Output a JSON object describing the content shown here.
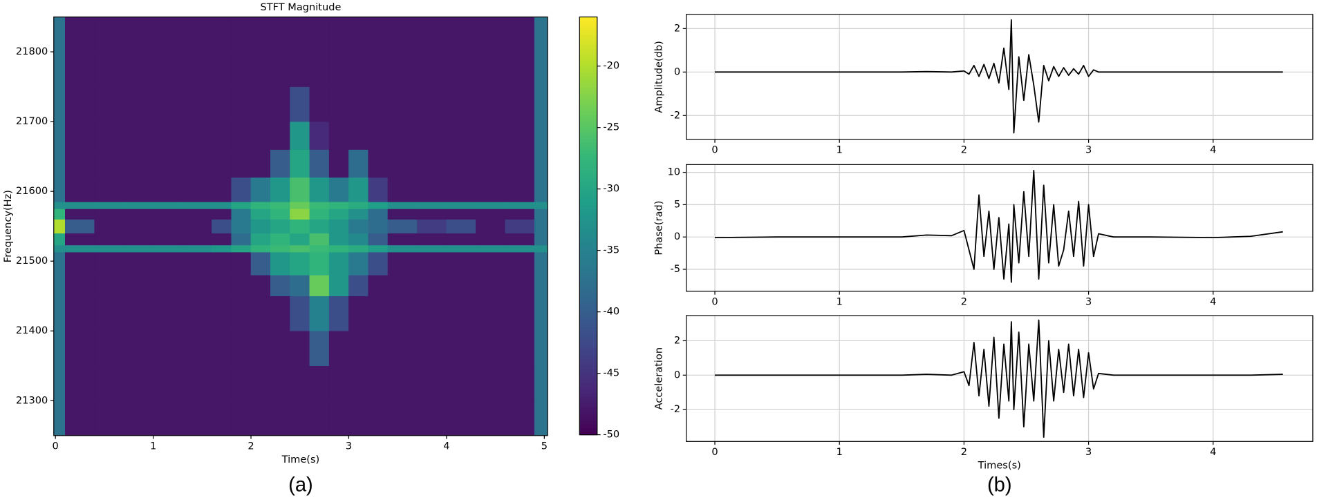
{
  "panels": {
    "a": "(a)",
    "b": "(b)"
  },
  "chart_data": [
    {
      "type": "heatmap",
      "title": "STFT Magnitude",
      "xlabel": "Time(s)",
      "ylabel": "Frequency(Hz)",
      "cmap": "viridis",
      "xbins": [
        -0.05,
        0.1,
        0.4,
        0.7,
        1.0,
        1.3,
        1.6,
        1.8,
        2.0,
        2.2,
        2.4,
        2.6,
        2.8,
        3.0,
        3.2,
        3.4,
        3.7,
        4.0,
        4.3,
        4.6,
        4.9,
        5.05
      ],
      "ybins": [
        21250,
        21300,
        21350,
        21400,
        21450,
        21480,
        21513,
        21523,
        21540,
        21560,
        21575,
        21585,
        21620,
        21660,
        21700,
        21750,
        21800,
        21850
      ],
      "z": [
        [
          -37,
          -48,
          -48,
          -48,
          -48,
          -48,
          -48,
          -48,
          -48,
          -48,
          -48,
          -48,
          -48,
          -48,
          -48,
          -48,
          -48,
          -48,
          -48,
          -48,
          -37
        ],
        [
          -37,
          -48,
          -48,
          -48,
          -48,
          -48,
          -48,
          -48,
          -48,
          -48,
          -48,
          -48,
          -48,
          -48,
          -48,
          -48,
          -48,
          -48,
          -48,
          -48,
          -37
        ],
        [
          -37,
          -48,
          -48,
          -48,
          -48,
          -48,
          -48,
          -48,
          -48,
          -48,
          -48,
          -40,
          -48,
          -48,
          -48,
          -48,
          -48,
          -48,
          -48,
          -48,
          -37
        ],
        [
          -37,
          -48,
          -48,
          -48,
          -48,
          -48,
          -48,
          -48,
          -48,
          -48,
          -42,
          -35,
          -42,
          -48,
          -48,
          -48,
          -48,
          -48,
          -48,
          -48,
          -37
        ],
        [
          -37,
          -48,
          -48,
          -48,
          -48,
          -48,
          -48,
          -48,
          -48,
          -40,
          -38,
          -24,
          -32,
          -42,
          -48,
          -48,
          -48,
          -48,
          -48,
          -48,
          -37
        ],
        [
          -37,
          -48,
          -48,
          -48,
          -48,
          -48,
          -48,
          -48,
          -40,
          -32,
          -30,
          -28,
          -32,
          -36,
          -42,
          -48,
          -48,
          -48,
          -48,
          -48,
          -37
        ],
        [
          -33,
          -33,
          -33,
          -33,
          -33,
          -33,
          -32,
          -30,
          -28,
          -27,
          -26,
          -27,
          -28,
          -29,
          -31,
          -33,
          -33,
          -33,
          -33,
          -33,
          -33
        ],
        [
          -30,
          -48,
          -48,
          -48,
          -48,
          -48,
          -48,
          -38,
          -30,
          -28,
          -30,
          -26,
          -32,
          -34,
          -40,
          -48,
          -48,
          -48,
          -48,
          -48,
          -37
        ],
        [
          -20,
          -40,
          -48,
          -48,
          -48,
          -48,
          -42,
          -36,
          -32,
          -30,
          -28,
          -30,
          -32,
          -36,
          -38,
          -40,
          -44,
          -42,
          -48,
          -44,
          -37
        ],
        [
          -28,
          -48,
          -48,
          -48,
          -48,
          -48,
          -48,
          -36,
          -30,
          -28,
          -22,
          -28,
          -30,
          -33,
          -38,
          -48,
          -48,
          -48,
          -48,
          -48,
          -37
        ],
        [
          -33,
          -33,
          -33,
          -33,
          -33,
          -33,
          -33,
          -30,
          -28,
          -27,
          -24,
          -27,
          -28,
          -29,
          -31,
          -33,
          -33,
          -33,
          -33,
          -33,
          -33
        ],
        [
          -37,
          -48,
          -48,
          -48,
          -48,
          -48,
          -48,
          -42,
          -36,
          -32,
          -26,
          -32,
          -36,
          -32,
          -44,
          -48,
          -48,
          -48,
          -48,
          -48,
          -37
        ],
        [
          -37,
          -48,
          -48,
          -48,
          -48,
          -48,
          -48,
          -48,
          -48,
          -40,
          -30,
          -40,
          -48,
          -38,
          -48,
          -48,
          -48,
          -48,
          -48,
          -48,
          -37
        ],
        [
          -37,
          -48,
          -48,
          -48,
          -48,
          -48,
          -48,
          -48,
          -48,
          -48,
          -32,
          -46,
          -48,
          -48,
          -48,
          -48,
          -48,
          -48,
          -48,
          -48,
          -37
        ],
        [
          -37,
          -48,
          -48,
          -48,
          -48,
          -48,
          -48,
          -48,
          -48,
          -48,
          -42,
          -48,
          -48,
          -48,
          -48,
          -48,
          -48,
          -48,
          -48,
          -48,
          -37
        ],
        [
          -37,
          -48,
          -48,
          -48,
          -48,
          -48,
          -48,
          -48,
          -48,
          -48,
          -48,
          -48,
          -48,
          -48,
          -48,
          -48,
          -48,
          -48,
          -48,
          -48,
          -37
        ],
        [
          -37,
          -48,
          -48,
          -48,
          -48,
          -48,
          -48,
          -48,
          -48,
          -48,
          -48,
          -48,
          -48,
          -48,
          -48,
          -48,
          -48,
          -48,
          -48,
          -48,
          -37
        ]
      ],
      "xlim": [
        -0.017,
        5.034
      ],
      "ylim": [
        21250,
        21850
      ],
      "xticks": [
        0,
        1,
        2,
        3,
        4,
        5
      ],
      "yticks": [
        21300,
        21400,
        21500,
        21600,
        21700,
        21800
      ],
      "clim": [
        -50,
        -16
      ],
      "cticks": [
        -50,
        -45,
        -40,
        -35,
        -30,
        -25,
        -20
      ]
    },
    {
      "type": "line",
      "ylabel": "Amplitude(db)",
      "x": [
        0,
        0.5,
        1,
        1.5,
        1.7,
        1.9,
        2.0,
        2.04,
        2.08,
        2.12,
        2.16,
        2.2,
        2.24,
        2.28,
        2.32,
        2.36,
        2.38,
        2.4,
        2.44,
        2.48,
        2.52,
        2.56,
        2.6,
        2.64,
        2.68,
        2.72,
        2.76,
        2.8,
        2.84,
        2.88,
        2.92,
        2.96,
        3.0,
        3.04,
        3.08,
        3.2,
        3.5,
        4,
        4.3,
        4.56
      ],
      "series": [
        {
          "color": "#000000",
          "values": [
            0,
            0,
            0,
            0,
            0.02,
            0,
            0.05,
            -0.1,
            0.3,
            -0.2,
            0.35,
            -0.3,
            0.4,
            -0.5,
            1.1,
            -0.8,
            2.4,
            -2.8,
            0.7,
            -1.3,
            0.8,
            -0.6,
            -2.3,
            0.3,
            -0.4,
            0.25,
            -0.2,
            0.2,
            -0.15,
            0.15,
            -0.1,
            0.3,
            -0.2,
            0.1,
            0,
            0,
            0,
            0,
            0,
            0
          ]
        }
      ],
      "xlim": [
        -0.23,
        4.8
      ],
      "ylim": [
        -3.1,
        2.65
      ],
      "xticks": [
        0,
        1,
        2,
        3,
        4
      ],
      "yticks": [
        -2,
        0,
        2
      ],
      "grid": true
    },
    {
      "type": "line",
      "ylabel": "Phase(rad)",
      "x": [
        0,
        0.5,
        1,
        1.5,
        1.7,
        1.9,
        2.0,
        2.04,
        2.08,
        2.12,
        2.16,
        2.2,
        2.24,
        2.28,
        2.32,
        2.36,
        2.38,
        2.4,
        2.44,
        2.48,
        2.52,
        2.56,
        2.6,
        2.64,
        2.68,
        2.72,
        2.76,
        2.8,
        2.84,
        2.88,
        2.92,
        2.96,
        3.0,
        3.04,
        3.08,
        3.2,
        3.5,
        4,
        4.3,
        4.56
      ],
      "series": [
        {
          "color": "#000000",
          "values": [
            -0.1,
            0,
            0,
            0,
            0.3,
            0.2,
            1.0,
            -2,
            -5,
            6.5,
            -3,
            4,
            -5,
            3,
            -6.5,
            2,
            -7,
            5,
            -4,
            7,
            -3,
            10.3,
            -6.5,
            8,
            -4,
            5,
            -4.5,
            -2,
            4,
            -3,
            5.5,
            -4.5,
            5,
            -3,
            0.5,
            0,
            0,
            -0.1,
            0.1,
            0.8
          ]
        }
      ],
      "xlim": [
        -0.23,
        4.8
      ],
      "ylim": [
        -8.4,
        11.2
      ],
      "xticks": [
        0,
        1,
        2,
        3,
        4
      ],
      "yticks": [
        -5,
        0,
        5,
        10
      ],
      "grid": true
    },
    {
      "type": "line",
      "ylabel": "Acceleration",
      "xlabel": "Times(s)",
      "x": [
        0,
        0.5,
        1,
        1.5,
        1.7,
        1.9,
        2.0,
        2.04,
        2.08,
        2.12,
        2.16,
        2.2,
        2.24,
        2.28,
        2.32,
        2.36,
        2.38,
        2.4,
        2.44,
        2.48,
        2.52,
        2.56,
        2.6,
        2.64,
        2.68,
        2.72,
        2.76,
        2.8,
        2.84,
        2.88,
        2.92,
        2.96,
        3.0,
        3.04,
        3.08,
        3.2,
        3.5,
        4,
        4.3,
        4.56
      ],
      "series": [
        {
          "color": "#000000",
          "values": [
            0,
            0,
            0,
            0,
            0.05,
            0,
            0.2,
            -0.6,
            1.9,
            -1.2,
            1.5,
            -1.8,
            2.2,
            -2.5,
            1.8,
            -1.5,
            3.1,
            -2,
            2.5,
            -3,
            1.8,
            -1.5,
            3.2,
            -3.6,
            2,
            -1.5,
            1.5,
            -1,
            1.8,
            -1.2,
            1.5,
            -1.3,
            1.3,
            -0.8,
            0.1,
            0,
            0,
            0,
            0,
            0.05
          ]
        }
      ],
      "xlim": [
        -0.23,
        4.8
      ],
      "ylim": [
        -3.85,
        3.46
      ],
      "xticks": [
        0,
        1,
        2,
        3,
        4
      ],
      "yticks": [
        -2,
        0,
        2
      ],
      "grid": true
    }
  ]
}
